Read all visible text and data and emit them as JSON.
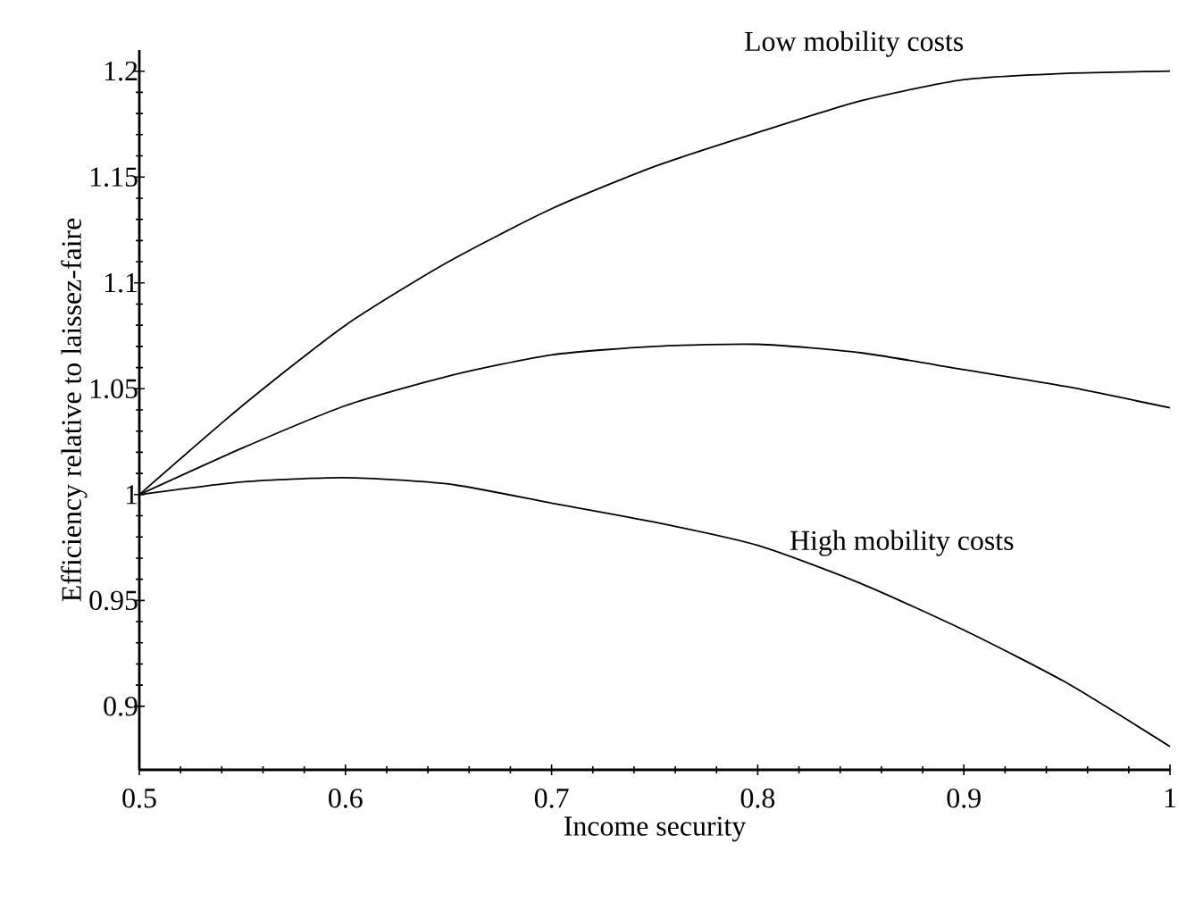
{
  "chart_data": {
    "type": "line",
    "xlabel": "Income security",
    "ylabel": "Efficiency relative to laissez-faire",
    "x": [
      0.5,
      0.55,
      0.6,
      0.65,
      0.7,
      0.75,
      0.8,
      0.85,
      0.9,
      0.95,
      1.0
    ],
    "series": [
      {
        "name": "Low mobility costs",
        "color": "#000000",
        "values": [
          1.0,
          1.042,
          1.08,
          1.11,
          1.135,
          1.155,
          1.171,
          1.186,
          1.196,
          1.199,
          1.2
        ]
      },
      {
        "color": "#000000",
        "values": [
          1.0,
          1.022,
          1.042,
          1.056,
          1.066,
          1.07,
          1.071,
          1.067,
          1.059,
          1.051,
          1.041
        ]
      },
      {
        "name": "High mobility costs",
        "color": "#000000",
        "values": [
          1.0,
          1.006,
          1.008,
          1.005,
          0.996,
          0.987,
          0.976,
          0.958,
          0.936,
          0.911,
          0.881
        ]
      }
    ],
    "xlim": [
      0.5,
      1.0
    ],
    "ylim": [
      0.87,
      1.21
    ],
    "xticks": [
      0.5,
      0.6,
      0.7,
      0.8,
      0.9,
      1
    ],
    "yticks": [
      0.9,
      0.95,
      1,
      1.05,
      1.1,
      1.15,
      1.2
    ],
    "grid": false,
    "legend": false,
    "marker": "none",
    "line_style": "solid"
  }
}
